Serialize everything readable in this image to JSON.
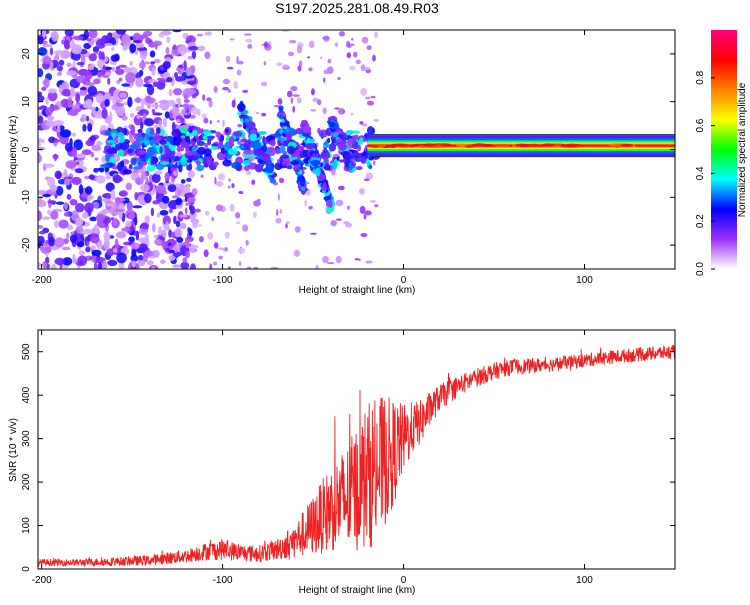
{
  "chart_data": [
    {
      "type": "heatmap",
      "title": "S197.2025.281.08.49.R03",
      "xlabel": "Height of straight line (km)",
      "ylabel": "Frequency (Hz)",
      "xlim": [
        -202,
        150
      ],
      "ylim": [
        -25,
        25
      ],
      "xticks": [
        -200,
        -100,
        0,
        100
      ],
      "yticks": [
        -20,
        -10,
        0,
        10,
        20
      ],
      "colorbar": {
        "label": "Normalized spectral amplitude",
        "range": [
          0.0,
          1.0
        ],
        "ticks": [
          "0.0",
          "0.2",
          "0.4",
          "0.6",
          "0.8"
        ],
        "colors": [
          "#ffffff",
          "#9b30ff",
          "#0000ff",
          "#00ffff",
          "#00ff00",
          "#ffff00",
          "#ff8000",
          "#ff0000",
          "#ff007f"
        ]
      },
      "features": {
        "carrier_line": {
          "x_start": -20,
          "x_end": 150,
          "freq": 0.8,
          "amplitude": 0.9
        },
        "descending_streaks": [
          {
            "x_start": -90,
            "x_end": -72,
            "f_start": 9,
            "f_end": -6
          },
          {
            "x_start": -68,
            "x_end": -55,
            "f_start": 8,
            "f_end": -8
          },
          {
            "x_start": -55,
            "x_end": -40,
            "f_start": 5,
            "f_end": -12
          },
          {
            "x_start": -40,
            "x_end": -28,
            "f_start": 6,
            "f_end": -4
          }
        ],
        "noise_region": {
          "x_start": -202,
          "x_end": -125,
          "f_range": [
            -25,
            25
          ]
        }
      }
    },
    {
      "type": "line",
      "title": "",
      "xlabel": "Height of straight line (km)",
      "ylabel": "SNR (10 * v/v)",
      "xlim": [
        -202,
        150
      ],
      "ylim": [
        0,
        550
      ],
      "xticks": [
        -200,
        -100,
        0,
        100
      ],
      "yticks": [
        0,
        100,
        200,
        300,
        400,
        500
      ],
      "series": [
        {
          "name": "SNR",
          "color": "#ee2222",
          "x": [
            -202,
            -180,
            -160,
            -140,
            -130,
            -120,
            -110,
            -100,
            -90,
            -80,
            -70,
            -60,
            -50,
            -40,
            -30,
            -25,
            -20,
            -15,
            -10,
            -5,
            0,
            5,
            10,
            15,
            20,
            30,
            40,
            50,
            60,
            80,
            100,
            120,
            150
          ],
          "values": [
            15,
            15,
            17,
            20,
            25,
            30,
            40,
            45,
            38,
            35,
            45,
            65,
            100,
            140,
            165,
            190,
            215,
            225,
            250,
            270,
            300,
            325,
            340,
            370,
            395,
            420,
            440,
            455,
            465,
            470,
            480,
            490,
            500
          ],
          "noise": [
            8,
            8,
            10,
            12,
            14,
            16,
            20,
            25,
            20,
            20,
            25,
            40,
            70,
            100,
            130,
            150,
            170,
            170,
            150,
            120,
            80,
            60,
            50,
            40,
            30,
            25,
            22,
            20,
            18,
            16,
            16,
            16,
            16
          ]
        }
      ]
    }
  ]
}
